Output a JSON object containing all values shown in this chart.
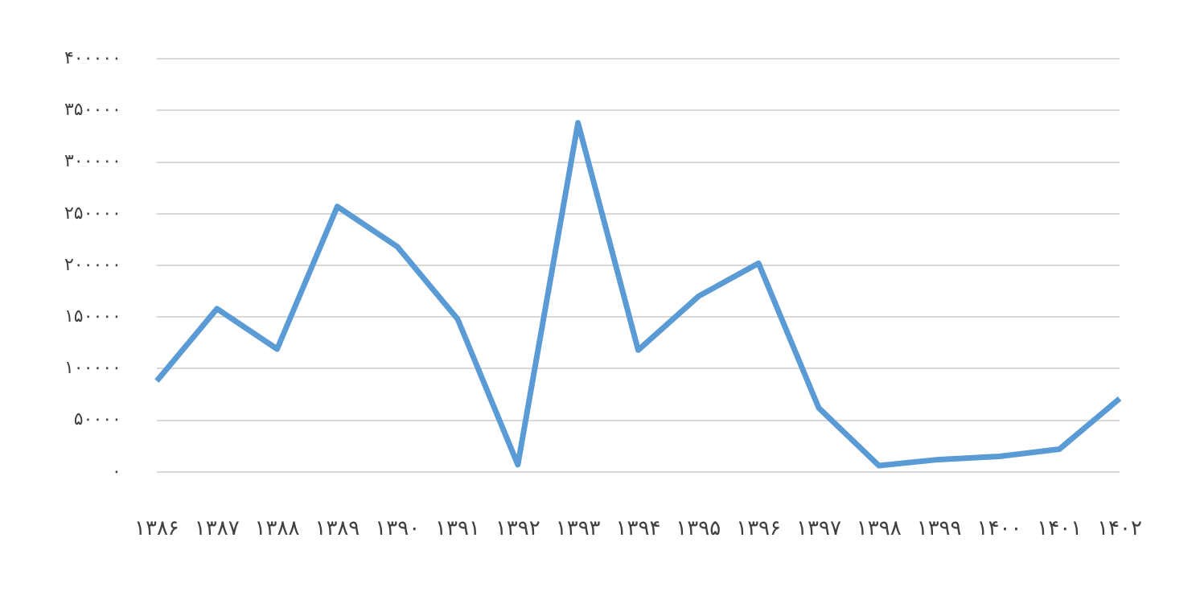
{
  "chart_data": {
    "type": "line",
    "categories": [
      "۱۳۸۶",
      "۱۳۸۷",
      "۱۳۸۸",
      "۱۳۸۹",
      "۱۳۹۰",
      "۱۳۹۱",
      "۱۳۹۲",
      "۱۳۹۳",
      "۱۳۹۴",
      "۱۳۹۵",
      "۱۳۹۶",
      "۱۳۹۷",
      "۱۳۹۸",
      "۱۳۹۹",
      "۱۴۰۰",
      "۱۴۰۱",
      "۱۴۰۲"
    ],
    "series": [
      {
        "color": "#5b9bd5",
        "values": [
          88000,
          158000,
          119000,
          257000,
          218000,
          148000,
          7000,
          338000,
          118000,
          170000,
          202000,
          62000,
          6000,
          12000,
          15000,
          22000,
          71000
        ]
      }
    ],
    "ylim": [
      0,
      400000
    ],
    "yticks": [
      {
        "value": 0,
        "label": "۰"
      },
      {
        "value": 50000,
        "label": "۵۰۰۰۰"
      },
      {
        "value": 100000,
        "label": "۱۰۰۰۰۰"
      },
      {
        "value": 150000,
        "label": "۱۵۰۰۰۰"
      },
      {
        "value": 200000,
        "label": "۲۰۰۰۰۰"
      },
      {
        "value": 250000,
        "label": "۲۵۰۰۰۰"
      },
      {
        "value": 300000,
        "label": "۳۰۰۰۰۰"
      },
      {
        "value": 350000,
        "label": "۳۵۰۰۰۰"
      },
      {
        "value": 400000,
        "label": "۴۰۰۰۰۰"
      }
    ],
    "grid": "y",
    "legend": false,
    "marker": "none",
    "line_style": "solid"
  }
}
